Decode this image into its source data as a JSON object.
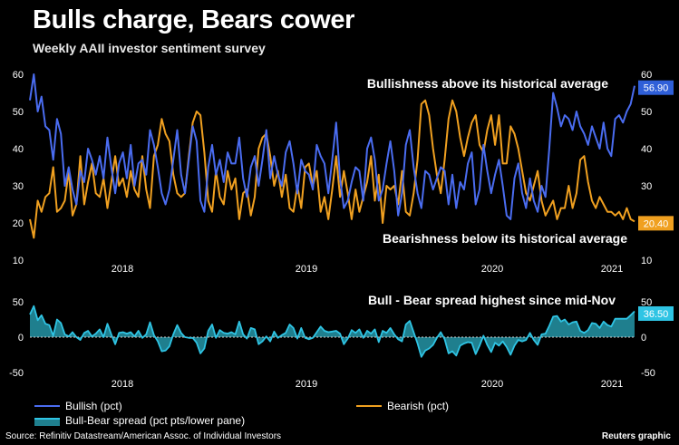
{
  "header": {
    "title": "Bulls charge, Bears cower",
    "subtitle": "Weekly AAII investor sentiment survey"
  },
  "footer": {
    "source": "Source: Refinitiv Datastream/American Assoc. of Individual Investors",
    "credit": "Reuters graphic"
  },
  "legend": {
    "bullish": "Bullish (pct)",
    "bearish": "Bearish (pct)",
    "spread": "Bull-Bear spread (pct pts/lower pane)"
  },
  "colors": {
    "bullish": "#4a6cf0",
    "bearish": "#f0a020",
    "spread_line": "#2fc4e4",
    "spread_fill": "#1f7f8e",
    "bull_tag": "#2f5fd8",
    "bear_tag": "#f0a020",
    "spread_tag": "#2fc4e4",
    "background": "#000000"
  },
  "chart_data": [
    {
      "type": "line",
      "annotations": [
        "Bullishness above its historical average",
        "Bearishness below its historical average"
      ],
      "x_tick_labels": [
        "2018",
        "2019",
        "2020",
        "2021"
      ],
      "ylim": [
        10,
        60
      ],
      "y_ticks": [
        10,
        20,
        30,
        40,
        50,
        60
      ],
      "grid": false,
      "last_value_tags": {
        "bullish": "56.90",
        "bearish": "20.40"
      },
      "series": [
        {
          "name": "Bullish (pct)",
          "values": [
            53,
            60,
            50,
            54,
            46,
            45,
            37,
            48,
            44,
            30,
            35,
            29,
            25,
            34,
            31,
            40,
            37,
            33,
            38,
            32,
            43,
            35,
            28,
            36,
            39,
            32,
            41,
            30,
            36,
            37,
            33,
            45,
            41,
            35,
            28,
            25,
            29,
            37,
            45,
            33,
            28,
            37,
            46,
            42,
            26,
            23,
            35,
            41,
            33,
            37,
            31,
            39,
            36,
            36,
            43,
            32,
            27,
            35,
            38,
            30,
            37,
            45,
            32,
            38,
            33,
            30,
            39,
            42,
            36,
            28,
            37,
            34,
            33,
            29,
            41,
            38,
            36,
            28,
            37,
            47,
            32,
            24,
            26,
            31,
            35,
            34,
            26,
            40,
            43,
            37,
            26,
            29,
            36,
            42,
            34,
            22,
            28,
            41,
            45,
            35,
            28,
            24,
            34,
            33,
            29,
            32,
            35,
            34,
            25,
            33,
            24,
            31,
            29,
            36,
            39,
            25,
            29,
            41,
            34,
            28,
            33,
            37,
            30,
            22,
            21,
            32,
            36,
            28,
            24,
            32,
            26,
            23,
            30,
            27,
            40,
            55,
            51,
            46,
            49,
            48,
            45,
            50,
            46,
            44,
            41,
            46,
            43,
            40,
            47,
            40,
            38,
            48,
            49,
            47,
            50,
            52,
            56.9
          ],
          "units": "pct"
        },
        {
          "name": "Bearish (pct)",
          "values": [
            21,
            16,
            26,
            23,
            27,
            28,
            35,
            23,
            24,
            26,
            34,
            22,
            25,
            38,
            25,
            31,
            36,
            28,
            27,
            32,
            24,
            31,
            38,
            30,
            32,
            27,
            34,
            29,
            27,
            38,
            29,
            24,
            38,
            41,
            48,
            44,
            42,
            33,
            28,
            27,
            28,
            38,
            47,
            50,
            49,
            39,
            26,
            23,
            34,
            27,
            25,
            34,
            29,
            32,
            21,
            28,
            29,
            22,
            27,
            40,
            43,
            44,
            38,
            30,
            34,
            27,
            33,
            24,
            23,
            30,
            24,
            35,
            36,
            30,
            34,
            23,
            27,
            21,
            29,
            38,
            27,
            34,
            28,
            21,
            29,
            23,
            27,
            31,
            38,
            26,
            33,
            20,
            30,
            29,
            30,
            25,
            34,
            23,
            22,
            28,
            37,
            52,
            53,
            49,
            40,
            33,
            28,
            37,
            48,
            53,
            50,
            43,
            38,
            43,
            47,
            49,
            41,
            39,
            45,
            49,
            41,
            49,
            36,
            36,
            46,
            44,
            40,
            34,
            28,
            26,
            30,
            34,
            26,
            22,
            24,
            26,
            21,
            24,
            24,
            30,
            24,
            28,
            37,
            38,
            31,
            26,
            24,
            27,
            25,
            23,
            23,
            22,
            23,
            21,
            24,
            21,
            20.4
          ],
          "units": "pct"
        }
      ]
    },
    {
      "type": "area",
      "annotations": [
        "Bull - Bear spread highest since mid-Nov"
      ],
      "x_tick_labels": [
        "2018",
        "2019",
        "2020",
        "2021"
      ],
      "ylim": [
        -50,
        50
      ],
      "y_ticks": [
        -50,
        0,
        50
      ],
      "grid": false,
      "last_value_tags": {
        "spread": "36.50"
      },
      "series": [
        {
          "name": "Bull-Bear spread (pct pts/lower pane)",
          "units": "pct pts",
          "values": [
            32,
            44,
            24,
            31,
            19,
            17,
            2,
            25,
            20,
            4,
            1,
            7,
            0,
            -4,
            6,
            9,
            1,
            5,
            11,
            0,
            19,
            4,
            -10,
            6,
            7,
            5,
            7,
            1,
            9,
            -1,
            4,
            21,
            3,
            -6,
            -20,
            -19,
            -13,
            4,
            17,
            6,
            0,
            -1,
            -1,
            -8,
            -23,
            -16,
            9,
            18,
            -1,
            10,
            6,
            5,
            7,
            4,
            22,
            4,
            -2,
            13,
            11,
            -10,
            -6,
            1,
            -6,
            8,
            -1,
            3,
            6,
            18,
            13,
            -2,
            13,
            -1,
            -3,
            -1,
            7,
            15,
            9,
            7,
            8,
            9,
            5,
            -10,
            -2,
            10,
            6,
            11,
            -1,
            9,
            5,
            11,
            -7,
            9,
            6,
            13,
            4,
            -3,
            -6,
            18,
            23,
            7,
            -9,
            -28,
            -19,
            -16,
            -11,
            -1,
            7,
            -3,
            -23,
            -20,
            -26,
            -12,
            -9,
            -7,
            -8,
            -24,
            -12,
            2,
            -11,
            -21,
            -8,
            -12,
            -6,
            -14,
            -25,
            -12,
            -4,
            -6,
            -4,
            6,
            -4,
            -11,
            4,
            5,
            16,
            29,
            30,
            22,
            25,
            18,
            21,
            22,
            9,
            6,
            10,
            20,
            19,
            13,
            22,
            17,
            15,
            26,
            26,
            26,
            26,
            31,
            36.5
          ]
        }
      ]
    }
  ]
}
